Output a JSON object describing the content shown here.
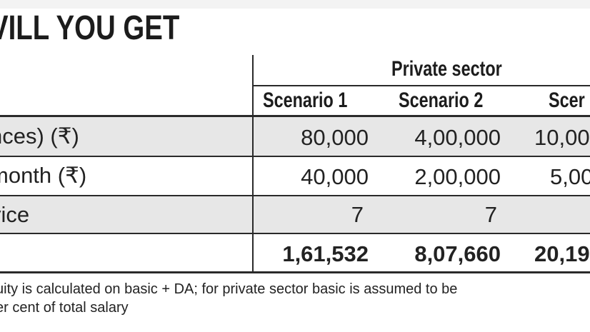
{
  "title": "VILL YOU GET",
  "table": {
    "group_header": "Private sector",
    "columns": [
      "Scenario 1",
      "Scenario 2",
      "Scer"
    ],
    "rows": [
      {
        "label": "nces) (₹)",
        "values": [
          "80,000",
          "4,00,000",
          "10,00"
        ]
      },
      {
        "label": "month (₹)",
        "values": [
          "40,000",
          "2,00,000",
          "5,00"
        ]
      },
      {
        "label": "vice",
        "values": [
          "7",
          "7",
          ""
        ]
      },
      {
        "label": "",
        "values": [
          "1,61,532",
          "8,07,660",
          "20,19"
        ]
      }
    ]
  },
  "footnote": {
    "line1": "uity is calculated on basic + DA; for private sector basic is assumed to be",
    "line2": "er cent of total salary"
  }
}
